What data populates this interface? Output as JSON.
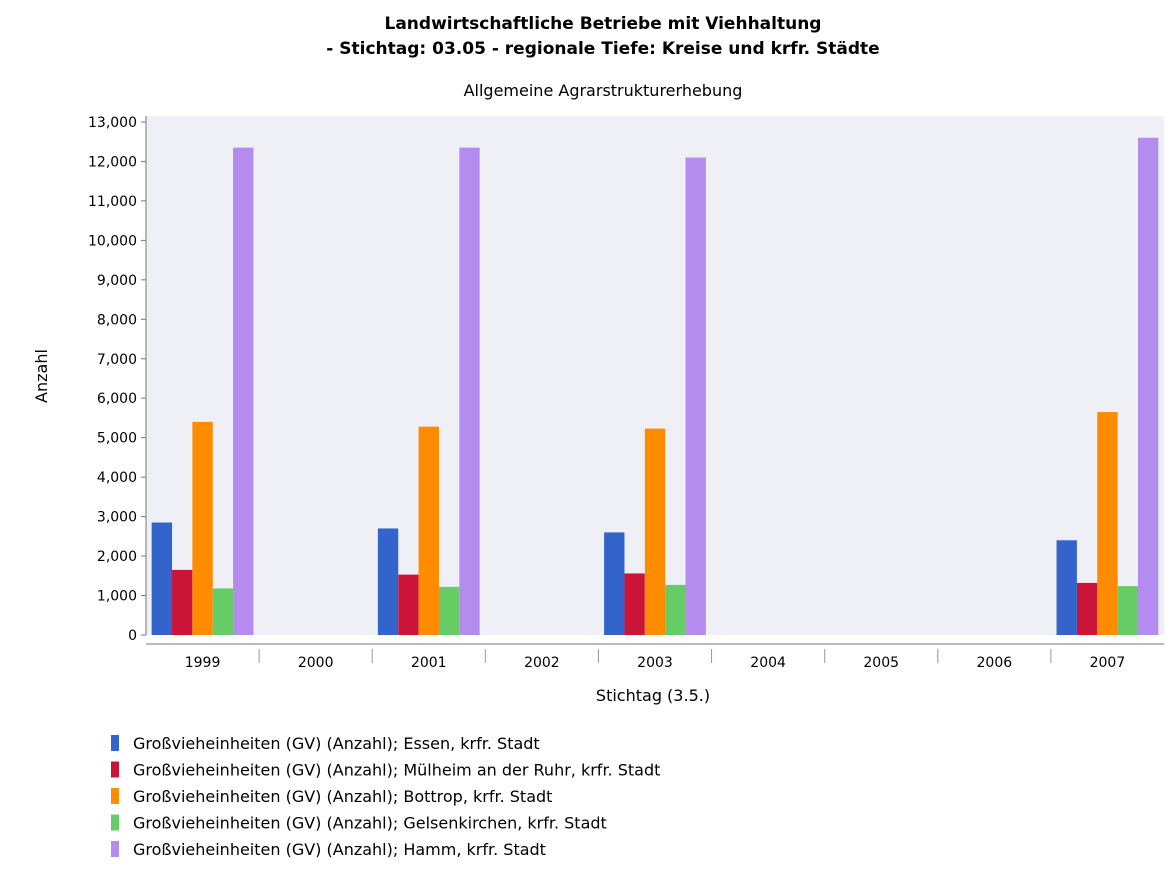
{
  "chart_data": {
    "type": "bar",
    "title": [
      "Landwirtschaftliche Betriebe mit Viehhaltung",
      "- Stichtag: 03.05 - regionale Tiefe: Kreise und krfr. Städte"
    ],
    "subtitle": "Allgemeine Agrarstrukturerhebung",
    "xlabel": "Stichtag (3.5.)",
    "ylabel": "Anzahl",
    "ylim": [
      0,
      13000
    ],
    "yticks": [
      0,
      1000,
      2000,
      3000,
      4000,
      5000,
      6000,
      7000,
      8000,
      9000,
      10000,
      11000,
      12000,
      13000
    ],
    "ytick_labels": [
      "0",
      "1,000",
      "2,000",
      "3,000",
      "4,000",
      "5,000",
      "6,000",
      "7,000",
      "8,000",
      "9,000",
      "10,000",
      "11,000",
      "12,000",
      "13,000"
    ],
    "categories": [
      "1999",
      "2000",
      "2001",
      "2002",
      "2003",
      "2004",
      "2005",
      "2006",
      "2007"
    ],
    "legend_position": "bottom",
    "series": [
      {
        "name": "Großvieheinheiten (GV) (Anzahl); Essen, krfr. Stadt",
        "color": "#3264cc",
        "values": [
          2850,
          null,
          2700,
          null,
          2600,
          null,
          null,
          null,
          2400
        ]
      },
      {
        "name": "Großvieheinheiten (GV) (Anzahl); Mülheim an der Ruhr, krfr. Stadt",
        "color": "#cc1438",
        "values": [
          1650,
          null,
          1530,
          null,
          1560,
          null,
          null,
          null,
          1320
        ]
      },
      {
        "name": "Großvieheinheiten (GV) (Anzahl); Bottrop, krfr. Stadt",
        "color": "#ff8c00",
        "values": [
          5400,
          null,
          5280,
          null,
          5230,
          null,
          null,
          null,
          5650
        ]
      },
      {
        "name": "Großvieheinheiten (GV) (Anzahl); Gelsenkirchen, krfr. Stadt",
        "color": "#66cc66",
        "values": [
          1180,
          null,
          1220,
          null,
          1270,
          null,
          null,
          null,
          1240
        ]
      },
      {
        "name": "Großvieheinheiten (GV) (Anzahl); Hamm, krfr. Stadt",
        "color": "#b48cf0",
        "values": [
          12350,
          null,
          12350,
          null,
          12100,
          null,
          null,
          null,
          12600
        ]
      }
    ],
    "grid": false,
    "plot_background": "#eef0f6"
  }
}
